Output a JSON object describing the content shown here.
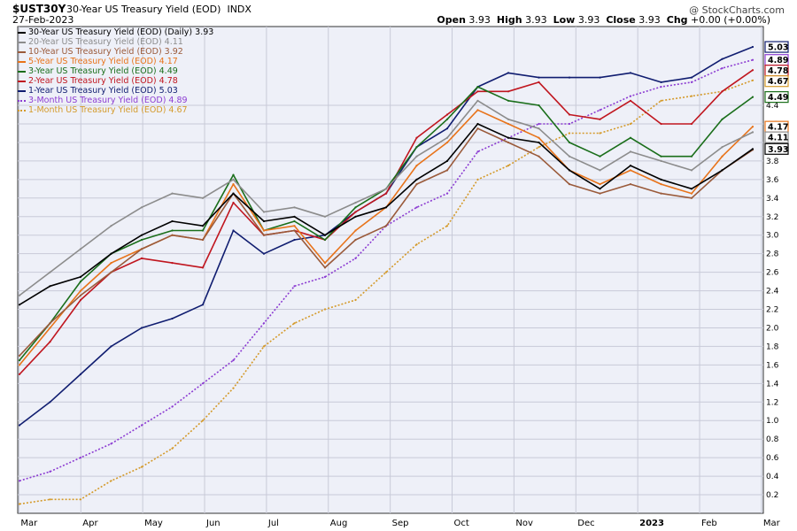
{
  "header": {
    "symbol": "$UST30Y",
    "name": "30-Year US Treasury Yield (EOD)",
    "exchange": "INDX",
    "date": "27-Feb-2023",
    "copyright": "@ StockCharts.com"
  },
  "ohlc": {
    "open_label": "Open",
    "open": "3.93",
    "high_label": "High",
    "high": "3.93",
    "low_label": "Low",
    "low": "3.93",
    "close_label": "Close",
    "close": "3.93",
    "chg_label": "Chg",
    "chg": "+0.00 (+0.00%)"
  },
  "legend": [
    {
      "text": "30-Year US Treasury Yield (EOD) (Daily) 3.93",
      "color": "#000000",
      "dotted": false
    },
    {
      "text": "20-Year US Treasury Yield (EOD) 4.11",
      "color": "#8c8c8c",
      "dotted": false
    },
    {
      "text": "10-Year US Treasury Yield (EOD) 3.92",
      "color": "#9a5a3a",
      "dotted": false
    },
    {
      "text": "5-Year US Treasury Yield (EOD) 4.17",
      "color": "#e8731a",
      "dotted": false
    },
    {
      "text": "3-Year US Treasury Yield (EOD) 4.49",
      "color": "#1a6e1a",
      "dotted": false
    },
    {
      "text": "2-Year US Treasury Yield (EOD) 4.78",
      "color": "#c0161f",
      "dotted": false
    },
    {
      "text": "1-Year US Treasury Yield (EOD) 5.03",
      "color": "#101d70",
      "dotted": false
    },
    {
      "text": "3-Month US Treasury Yield (EOD) 4.89",
      "color": "#8c3cd2",
      "dotted": true
    },
    {
      "text": "1-Month US Treasury Yield (EOD) 4.67",
      "color": "#d49a2a",
      "dotted": true
    }
  ],
  "chart_data": {
    "type": "line",
    "title": "30-Year US Treasury Yield (EOD)",
    "ylim": [
      0,
      5.25
    ],
    "y_ticks": [
      0.2,
      0.4,
      0.6,
      0.8,
      1.0,
      1.2,
      1.4,
      1.6,
      1.8,
      2.0,
      2.2,
      2.4,
      2.6,
      2.8,
      3.0,
      3.2,
      3.4,
      3.6,
      3.8,
      4.0,
      4.2,
      4.4
    ],
    "x_ticks": [
      "Mar",
      "Apr",
      "May",
      "Jun",
      "Jul",
      "Aug",
      "Sep",
      "Oct",
      "Nov",
      "Dec",
      "2023",
      "Feb",
      "Mar"
    ],
    "x_ticks_bold": "2023",
    "grid": true,
    "last_value_labels": [
      {
        "text": "5.03",
        "value": 5.03,
        "color": "#101d70",
        "filled": false
      },
      {
        "text": "4.89",
        "value": 4.89,
        "color": "#8c3cd2",
        "filled": false
      },
      {
        "text": "4.78",
        "value": 4.78,
        "color": "#c0161f",
        "filled": false
      },
      {
        "text": "4.67",
        "value": 4.67,
        "color": "#d49a2a",
        "filled": false
      },
      {
        "text": "4.49",
        "value": 4.49,
        "color": "#1a6e1a",
        "filled": false
      },
      {
        "text": "4.17",
        "value": 4.17,
        "color": "#e8731a",
        "filled": false
      },
      {
        "text": "4.11",
        "value": 4.11,
        "color": "#8c8c8c",
        "filled": false
      },
      {
        "text": "3.93",
        "value": 3.93,
        "color": "#000000",
        "filled": false
      }
    ],
    "x": [
      "Mar",
      "Mar-mid",
      "Apr",
      "Apr-mid",
      "May",
      "May-mid",
      "Jun",
      "Jun-mid",
      "Jul",
      "Jul-mid",
      "Aug",
      "Aug-mid",
      "Sep",
      "Sep-mid",
      "Oct",
      "Oct-mid",
      "Nov",
      "Nov-mid",
      "Dec",
      "Dec-mid",
      "Jan",
      "Jan-mid",
      "Feb",
      "Feb-mid",
      "Feb-end"
    ],
    "series": [
      {
        "name": "30-Year US Treasury Yield (EOD) (Daily)",
        "color": "#000000",
        "dotted": false,
        "values": [
          2.25,
          2.45,
          2.55,
          2.8,
          3.0,
          3.15,
          3.1,
          3.45,
          3.15,
          3.2,
          3.0,
          3.2,
          3.3,
          3.6,
          3.8,
          4.2,
          4.05,
          4.0,
          3.7,
          3.5,
          3.75,
          3.6,
          3.5,
          3.7,
          3.93
        ]
      },
      {
        "name": "20-Year US Treasury Yield (EOD)",
        "color": "#8c8c8c",
        "dotted": false,
        "values": [
          2.35,
          2.6,
          2.85,
          3.1,
          3.3,
          3.45,
          3.4,
          3.6,
          3.25,
          3.3,
          3.2,
          3.35,
          3.5,
          3.85,
          4.05,
          4.45,
          4.25,
          4.15,
          3.85,
          3.7,
          3.9,
          3.8,
          3.7,
          3.95,
          4.11
        ]
      },
      {
        "name": "10-Year US Treasury Yield (EOD)",
        "color": "#9a5a3a",
        "dotted": false,
        "values": [
          1.7,
          2.05,
          2.35,
          2.6,
          2.85,
          3.0,
          2.95,
          3.45,
          3.0,
          3.05,
          2.65,
          2.95,
          3.1,
          3.55,
          3.7,
          4.15,
          4.0,
          3.85,
          3.55,
          3.45,
          3.55,
          3.45,
          3.4,
          3.7,
          3.92
        ]
      },
      {
        "name": "5-Year US Treasury Yield (EOD)",
        "color": "#e8731a",
        "dotted": false,
        "values": [
          1.6,
          2.0,
          2.4,
          2.7,
          2.85,
          3.0,
          2.95,
          3.55,
          3.05,
          3.1,
          2.7,
          3.05,
          3.3,
          3.75,
          4.0,
          4.35,
          4.2,
          4.05,
          3.7,
          3.55,
          3.7,
          3.55,
          3.45,
          3.85,
          4.17
        ]
      },
      {
        "name": "3-Year US Treasury Yield (EOD)",
        "color": "#1a6e1a",
        "dotted": false,
        "values": [
          1.65,
          2.05,
          2.5,
          2.8,
          2.95,
          3.05,
          3.05,
          3.65,
          3.05,
          3.15,
          2.95,
          3.3,
          3.5,
          3.95,
          4.25,
          4.6,
          4.45,
          4.4,
          4.0,
          3.85,
          4.05,
          3.85,
          3.85,
          4.25,
          4.49
        ]
      },
      {
        "name": "2-Year US Treasury Yield (EOD)",
        "color": "#c0161f",
        "dotted": false,
        "values": [
          1.5,
          1.85,
          2.3,
          2.6,
          2.75,
          2.7,
          2.65,
          3.35,
          3.0,
          3.05,
          2.95,
          3.25,
          3.45,
          4.05,
          4.3,
          4.55,
          4.55,
          4.65,
          4.3,
          4.25,
          4.45,
          4.2,
          4.2,
          4.55,
          4.78
        ]
      },
      {
        "name": "1-Year US Treasury Yield (EOD)",
        "color": "#101d70",
        "dotted": false,
        "values": [
          0.95,
          1.2,
          1.5,
          1.8,
          2.0,
          2.1,
          2.25,
          3.05,
          2.8,
          2.95,
          3.0,
          3.25,
          3.45,
          3.95,
          4.15,
          4.6,
          4.75,
          4.7,
          4.7,
          4.7,
          4.75,
          4.65,
          4.7,
          4.9,
          5.03
        ]
      },
      {
        "name": "3-Month US Treasury Yield (EOD)",
        "color": "#8c3cd2",
        "dotted": true,
        "values": [
          0.35,
          0.45,
          0.6,
          0.75,
          0.95,
          1.15,
          1.4,
          1.65,
          2.05,
          2.45,
          2.55,
          2.75,
          3.1,
          3.3,
          3.45,
          3.9,
          4.05,
          4.2,
          4.2,
          4.35,
          4.5,
          4.6,
          4.65,
          4.8,
          4.89
        ]
      },
      {
        "name": "1-Month US Treasury Yield (EOD)",
        "color": "#d49a2a",
        "dotted": true,
        "values": [
          0.1,
          0.15,
          0.15,
          0.35,
          0.5,
          0.7,
          1.0,
          1.35,
          1.8,
          2.05,
          2.2,
          2.3,
          2.6,
          2.9,
          3.1,
          3.6,
          3.75,
          3.95,
          4.1,
          4.1,
          4.2,
          4.45,
          4.5,
          4.55,
          4.67
        ]
      }
    ]
  }
}
